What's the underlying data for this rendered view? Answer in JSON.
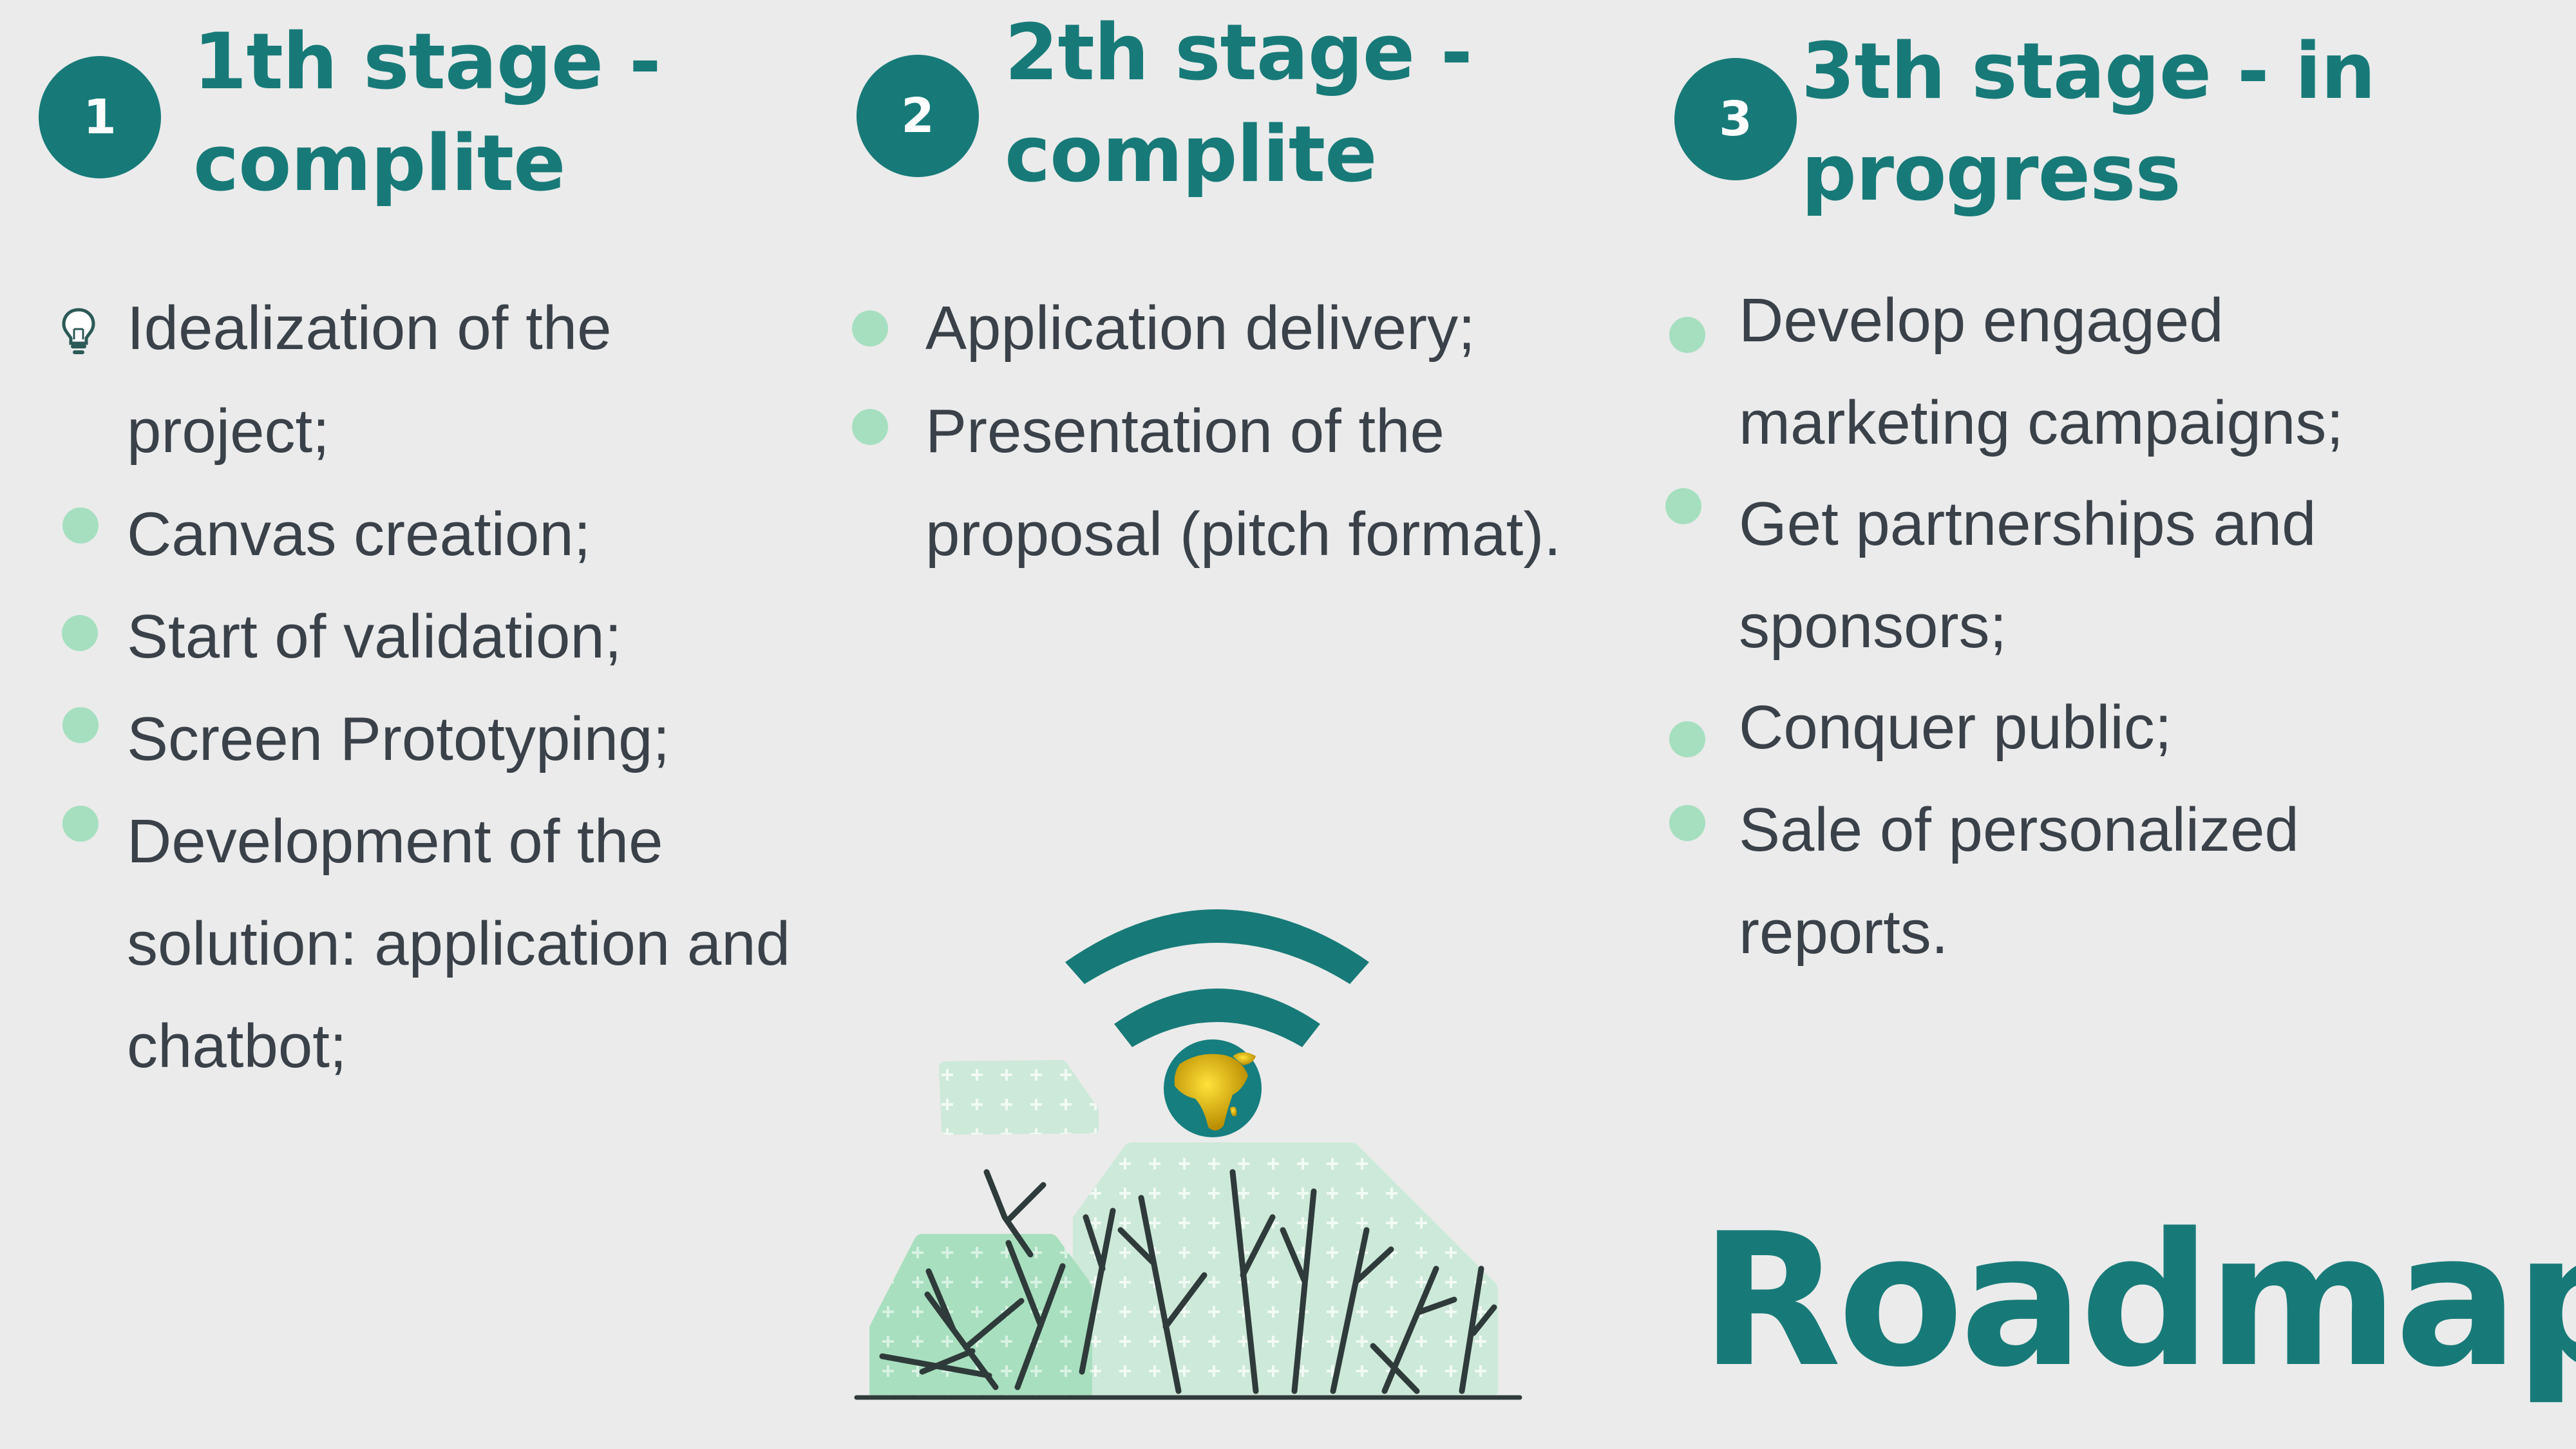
{
  "stages": [
    {
      "number": "1",
      "title_line1": "1th stage -",
      "title_line2": "complite",
      "items": [
        {
          "line1": "Idealization of the",
          "line2": "project;",
          "icon": "lightbulb-icon"
        },
        {
          "line1": "Canvas creation;"
        },
        {
          "line1": "Start of validation;"
        },
        {
          "line1": "Screen Prototyping;"
        },
        {
          "line1": "Development of the",
          "line2": "solution: application and",
          "line3": "chatbot;"
        }
      ]
    },
    {
      "number": "2",
      "title_line1": "2th stage -",
      "title_line2": "complite",
      "items": [
        {
          "line1": "Application delivery;"
        },
        {
          "line1": "Presentation of the",
          "line2": "proposal (pitch format)."
        }
      ]
    },
    {
      "number": "3",
      "title_line1": "3th stage - in",
      "title_line2": "progress",
      "items": [
        {
          "line1": "Develop engaged",
          "line2": "marketing campaigns;"
        },
        {
          "line1": "Get partnerships and",
          "line2": "sponsors;"
        },
        {
          "line1": "Conquer public;"
        },
        {
          "line1": "Sale of personalized",
          "line2": "reports."
        }
      ]
    }
  ],
  "footer": {
    "title": "Roadmap"
  },
  "illustration": {
    "icons": [
      "wifi-signal-icon",
      "globe-icon",
      "bush-icon",
      "bare-tree-icon"
    ]
  },
  "colors": {
    "background": "#ebebeb",
    "accent": "#177a78",
    "bullet": "#a5dfc0",
    "text": "#3a4148",
    "plant_light": "#cde9d9",
    "plant_mid": "#a8dfbf"
  }
}
